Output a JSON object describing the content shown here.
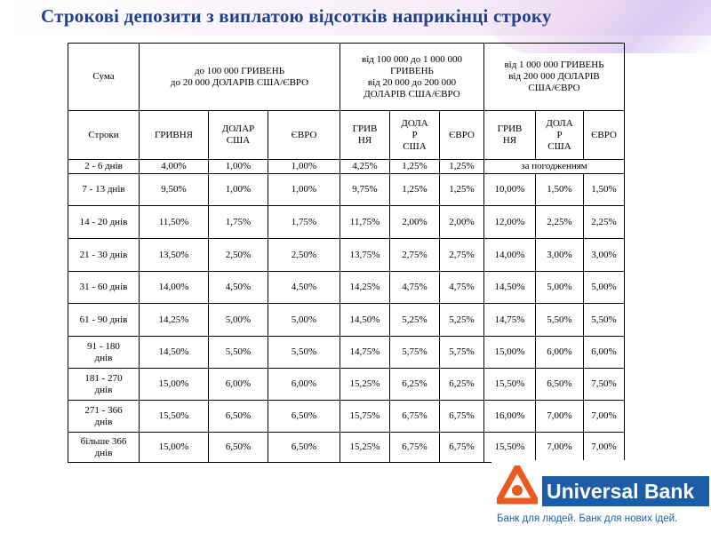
{
  "title": "Строкові депозити з виплатою відсотків наприкінці строку",
  "table": {
    "header1": {
      "sum_label": "Сума",
      "group1": [
        "до 100 000 ГРИВЕНЬ",
        "до 20 000 ДОЛАРІВ США/ЄВРО"
      ],
      "group2": [
        "від 100 000 до 1 000 000",
        "ГРИВЕНЬ",
        "від 20 000 до 200 000",
        "ДОЛАРІВ США/ЄВРО"
      ],
      "group3": [
        "від 1 000 000 ГРИВЕНЬ",
        "від 200 000 ДОЛАРІВ",
        "США/ЄВРО"
      ]
    },
    "header2": {
      "terms_label": "Строки",
      "group1": [
        [
          "ГРИВНЯ"
        ],
        [
          "ДОЛАР",
          "США"
        ],
        [
          "ЄВРО"
        ]
      ],
      "group2": [
        [
          "ГРИВ",
          "НЯ"
        ],
        [
          "ДОЛА",
          "Р",
          "США"
        ],
        [
          "ЄВРО"
        ]
      ],
      "group3": [
        [
          "ГРИВ",
          "НЯ"
        ],
        [
          "ДОЛА",
          "Р",
          "США"
        ],
        [
          "ЄВРО"
        ]
      ]
    },
    "negotiated_label": "за погодженням",
    "rows": [
      {
        "term": [
          "2 - 6 днів"
        ],
        "values": [
          "4,00%",
          "1,00%",
          "1,00%",
          "4,25%",
          "1,25%",
          "1,25%"
        ]
      },
      {
        "term": [
          "7 - 13 днів"
        ],
        "values": [
          "9,50%",
          "1,00%",
          "1,00%",
          "9,75%",
          "1,25%",
          "1,25%",
          "10,00%",
          "1,50%",
          "1,50%"
        ]
      },
      {
        "term": [
          "14 - 20 днів"
        ],
        "values": [
          "11,50%",
          "1,75%",
          "1,75%",
          "11,75%",
          "2,00%",
          "2,00%",
          "12,00%",
          "2,25%",
          "2,25%"
        ]
      },
      {
        "term": [
          "21 - 30 днів"
        ],
        "values": [
          "13,50%",
          "2,50%",
          "2,50%",
          "13,75%",
          "2,75%",
          "2,75%",
          "14,00%",
          "3,00%",
          "3,00%"
        ]
      },
      {
        "term": [
          "31 - 60 днів"
        ],
        "values": [
          "14,00%",
          "4,50%",
          "4,50%",
          "14,25%",
          "4,75%",
          "4,75%",
          "14,50%",
          "5,00%",
          "5,00%"
        ]
      },
      {
        "term": [
          "61 - 90 днів"
        ],
        "values": [
          "14,25%",
          "5,00%",
          "5,00%",
          "14,50%",
          "5,25%",
          "5,25%",
          "14,75%",
          "5,50%",
          "5,50%"
        ]
      },
      {
        "term": [
          "91 - 180",
          "днів"
        ],
        "values": [
          "14,50%",
          "5,50%",
          "5,50%",
          "14,75%",
          "5,75%",
          "5,75%",
          "15,00%",
          "6,00%",
          "6,00%"
        ]
      },
      {
        "term": [
          "181 - 270",
          "днів"
        ],
        "values": [
          "15,00%",
          "6,00%",
          "6,00%",
          "15,25%",
          "6,25%",
          "6,25%",
          "15,50%",
          "6,50%",
          "7,50%"
        ]
      },
      {
        "term": [
          "271 - 366",
          "днів"
        ],
        "values": [
          "15,50%",
          "6,50%",
          "6,50%",
          "15,75%",
          "6,75%",
          "6,75%",
          "16,00%",
          "7,00%",
          "7,00%"
        ]
      },
      {
        "term": [
          "більше 366",
          "днів"
        ],
        "values": [
          "15,00%",
          "6,50%",
          "6,50%",
          "15,25%",
          "6,75%",
          "6,75%",
          "15,50%",
          "7,00%",
          "7,00%"
        ]
      }
    ]
  },
  "logo": {
    "name": "Universal Bank",
    "tagline": "Банк для людей. Банк для нових ідей.",
    "brand_color": "#1d5da8",
    "accent_color": "#e85a1e"
  }
}
